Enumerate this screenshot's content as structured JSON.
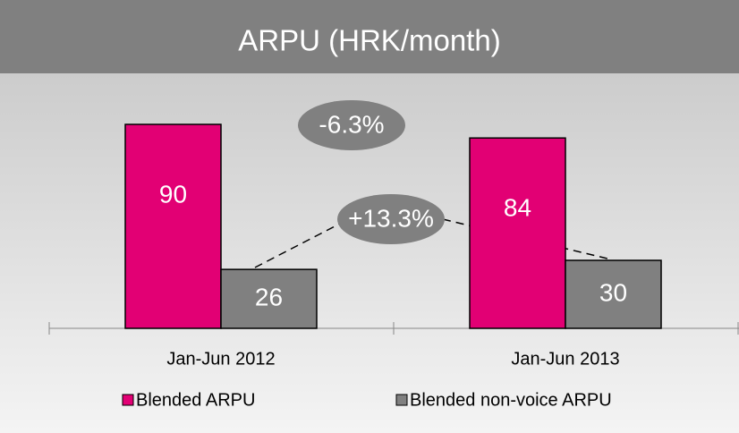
{
  "chart_data": {
    "type": "bar",
    "title": "ARPU (HRK/month)",
    "categories": [
      "Jan-Jun 2012",
      "Jan-Jun 2013"
    ],
    "series": [
      {
        "name": "Blended ARPU",
        "color": "#e20074",
        "values": [
          90,
          84
        ]
      },
      {
        "name": "Blended non-voice ARPU",
        "color": "#808080",
        "values": [
          26,
          30
        ]
      }
    ],
    "annotations": [
      "-6.3%",
      "+13.3%"
    ]
  }
}
